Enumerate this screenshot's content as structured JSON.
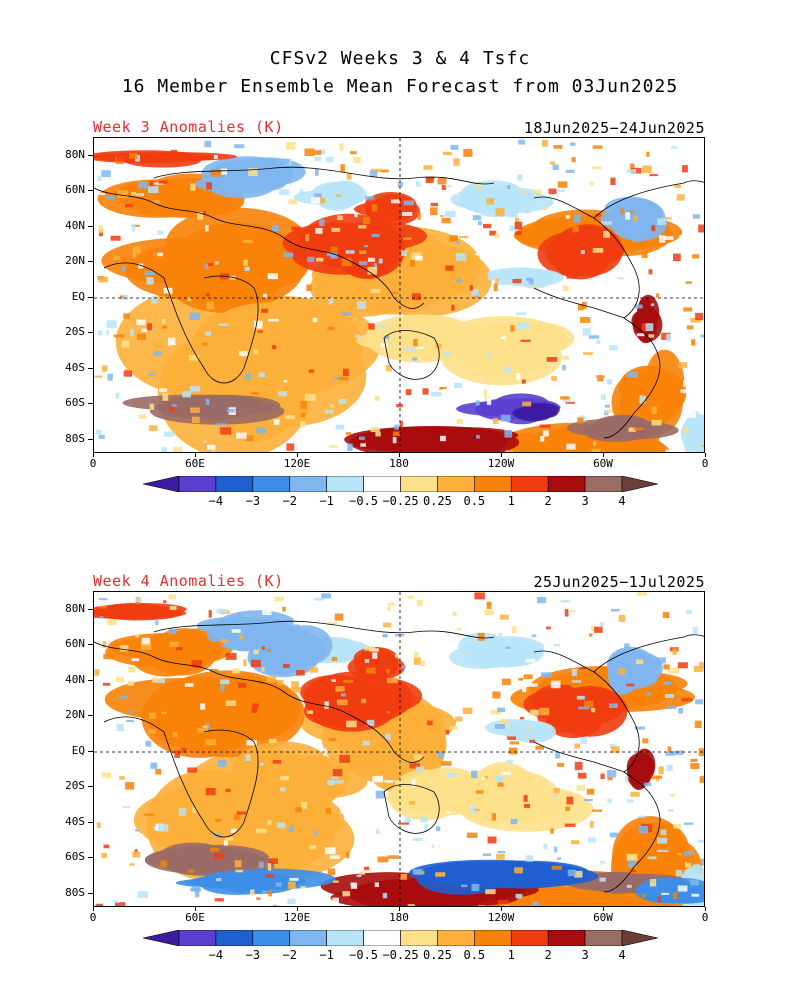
{
  "title": {
    "line1": "CFSv2 Weeks 3 & 4 Tsfc",
    "line2": "16 Member Ensemble Mean Forecast from 03Jun2025"
  },
  "panels": [
    {
      "label": "Week 3 Anomalies (K)",
      "date_range": "18Jun2025−24Jun2025"
    },
    {
      "label": "Week 4 Anomalies (K)",
      "date_range": "25Jun2025−1Jul2025"
    }
  ],
  "axes": {
    "lat_labels": [
      "80N",
      "60N",
      "40N",
      "20N",
      "EQ",
      "20S",
      "40S",
      "60S",
      "80S"
    ],
    "lon_labels": [
      "0",
      "60E",
      "120E",
      "180",
      "120W",
      "60W",
      "0"
    ]
  },
  "colorbar": {
    "labels": [
      "−4",
      "−3",
      "−2",
      "−1",
      "−0.5",
      "−0.25",
      "0.25",
      "0.5",
      "1",
      "2",
      "3",
      "4"
    ],
    "colors": [
      "#3c1b9e",
      "#5a3fd0",
      "#1f5fd0",
      "#3d8ee8",
      "#7fb6f0",
      "#b8e4f8",
      "#ffffff",
      "#fde08a",
      "#fdb03a",
      "#f88208",
      "#f03c10",
      "#a80c0c",
      "#9a6c66",
      "#6a4038"
    ]
  },
  "colors": {
    "title_red": "#e03030"
  }
}
